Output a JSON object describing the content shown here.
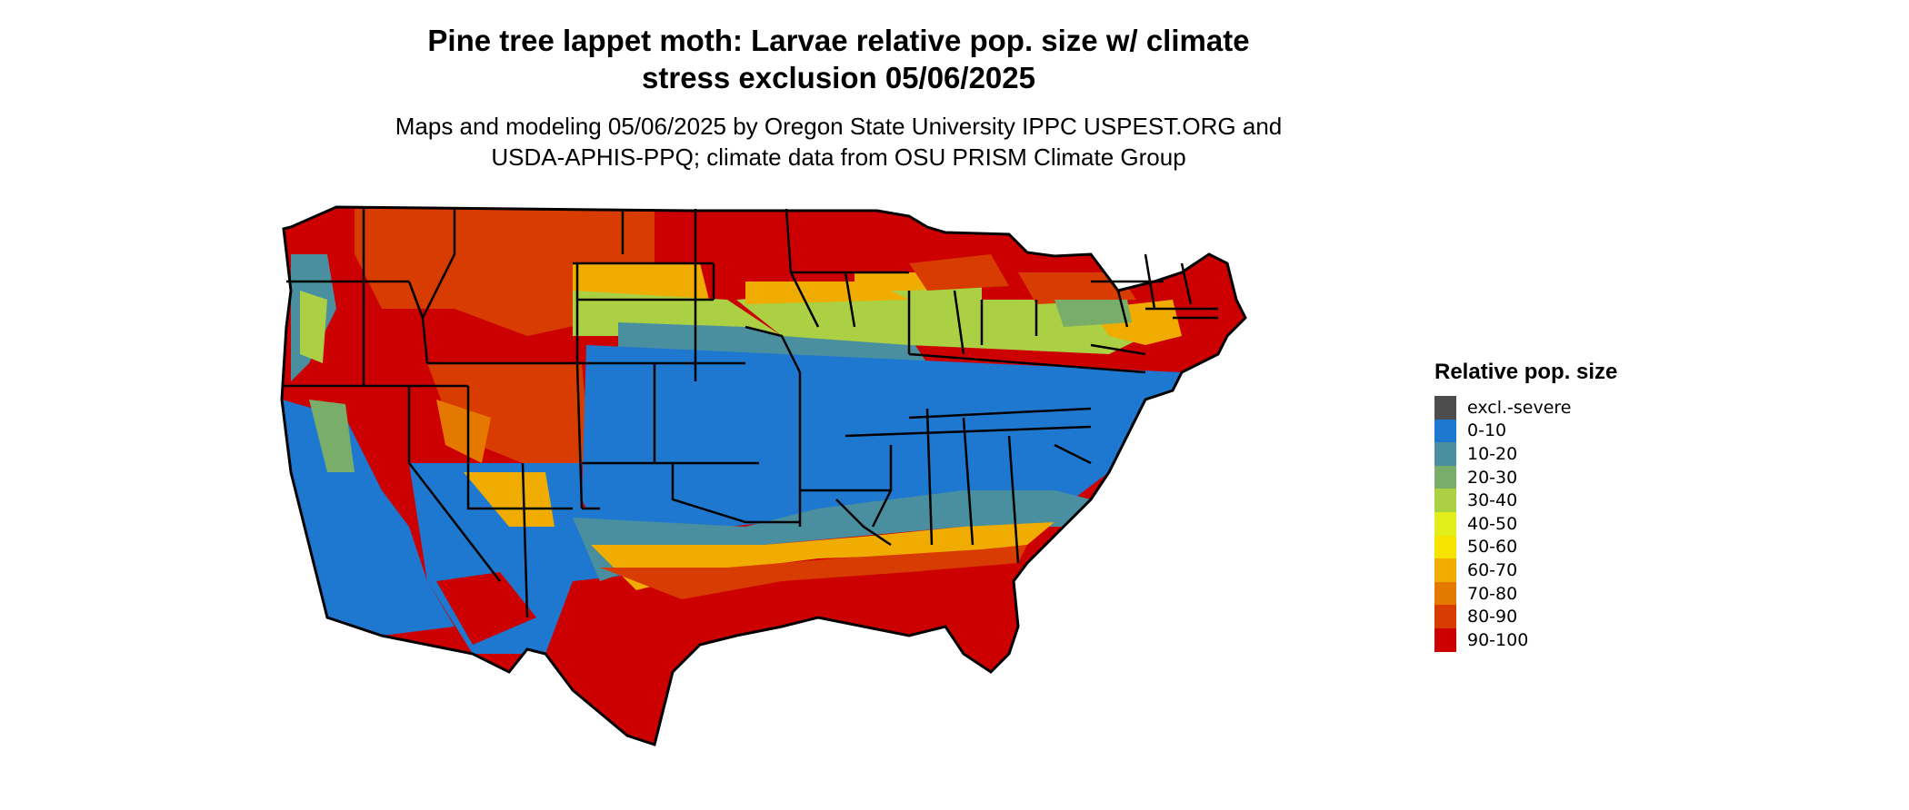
{
  "title_line1": "Pine tree lappet moth: Larvae relative pop. size w/ climate",
  "title_line2": "stress exclusion 05/06/2025",
  "subtitle_line1": "Maps and modeling 05/06/2025 by Oregon State University IPPC USPEST.ORG and",
  "subtitle_line2": "USDA-APHIS-PPQ; climate data from OSU PRISM Climate Group",
  "legend": {
    "title": "Relative pop. size",
    "items": [
      {
        "label": "excl.-severe",
        "color": "#4d4d4d"
      },
      {
        "label": "0-10",
        "color": "#1f78cf"
      },
      {
        "label": "10-20",
        "color": "#4a8fa0"
      },
      {
        "label": "20-30",
        "color": "#78ad6a"
      },
      {
        "label": "30-40",
        "color": "#acd043"
      },
      {
        "label": "40-50",
        "color": "#e1ee1a"
      },
      {
        "label": "50-60",
        "color": "#f7e300"
      },
      {
        "label": "60-70",
        "color": "#f0ac00"
      },
      {
        "label": "70-80",
        "color": "#e57900"
      },
      {
        "label": "80-90",
        "color": "#d93c00"
      },
      {
        "label": "90-100",
        "color": "#cc0000"
      }
    ]
  }
}
